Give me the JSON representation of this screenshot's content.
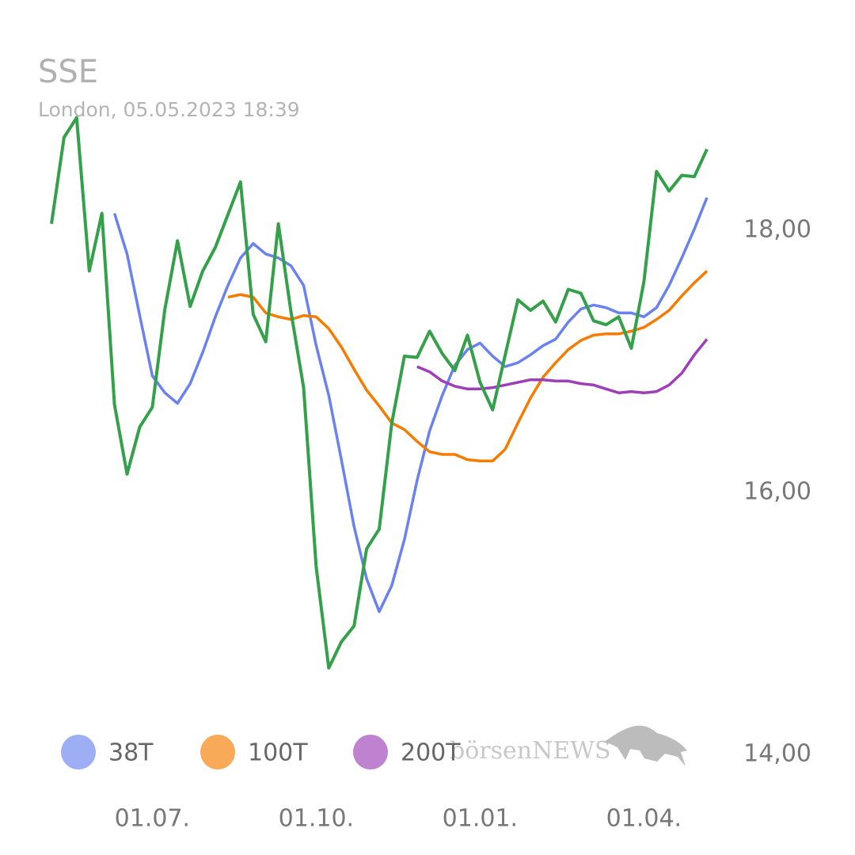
{
  "chart_data": {
    "type": "line",
    "title": "SSE",
    "subtitle": "London, 05.05.2023 18:39",
    "watermark": "börsenNEWS",
    "categories": [
      null,
      null,
      null,
      null,
      null,
      null,
      null,
      null,
      "01.07.",
      null,
      null,
      null,
      null,
      null,
      null,
      null,
      null,
      null,
      null,
      null,
      null,
      "01.10.",
      null,
      null,
      null,
      null,
      null,
      null,
      null,
      null,
      null,
      null,
      null,
      null,
      "01.01.",
      null,
      null,
      null,
      null,
      null,
      null,
      null,
      null,
      null,
      null,
      null,
      null,
      "01.04.",
      null,
      null,
      null,
      null,
      null
    ],
    "series": [
      {
        "color": "#34a04a",
        "values": [
          18.05,
          18.71,
          18.86,
          17.69,
          18.13,
          16.67,
          16.14,
          16.5,
          16.65,
          17.4,
          17.92,
          17.42,
          17.69,
          17.87,
          18.12,
          18.37,
          17.36,
          17.15,
          18.05,
          17.38,
          16.8,
          15.43,
          14.66,
          14.86,
          14.98,
          15.57,
          15.72,
          16.53,
          17.04,
          17.03,
          17.23,
          17.06,
          16.93,
          17.2,
          16.84,
          16.63,
          17.05,
          17.47,
          17.39,
          17.46,
          17.3,
          17.55,
          17.52,
          17.31,
          17.28,
          17.34,
          17.1,
          17.61,
          18.45,
          18.3,
          18.42,
          18.41,
          18.62
        ]
      },
      {
        "name": "38T",
        "color": "#6a82f0",
        "values": [
          null,
          null,
          null,
          null,
          null,
          18.13,
          17.82,
          17.35,
          16.89,
          16.76,
          16.68,
          16.83,
          17.07,
          17.34,
          17.58,
          17.79,
          17.9,
          17.82,
          17.79,
          17.73,
          17.58,
          17.12,
          16.74,
          16.25,
          15.74,
          15.34,
          15.09,
          15.29,
          15.64,
          16.09,
          16.47,
          16.74,
          16.97,
          17.09,
          17.14,
          17.04,
          16.96,
          16.99,
          17.05,
          17.12,
          17.17,
          17.3,
          17.4,
          17.43,
          17.41,
          17.37,
          17.37,
          17.34,
          17.41,
          17.58,
          17.79,
          18.01,
          18.25
        ]
      },
      {
        "name": "100T",
        "color": "#f57c00",
        "values": [
          null,
          null,
          null,
          null,
          null,
          null,
          null,
          null,
          null,
          null,
          null,
          null,
          null,
          null,
          17.49,
          17.51,
          17.49,
          17.37,
          17.34,
          17.32,
          17.35,
          17.34,
          17.25,
          17.11,
          16.94,
          16.78,
          16.66,
          16.53,
          16.48,
          16.39,
          16.31,
          16.29,
          16.29,
          16.25,
          16.24,
          16.24,
          16.33,
          16.53,
          16.72,
          16.88,
          16.99,
          17.09,
          17.16,
          17.2,
          17.21,
          17.21,
          17.23,
          17.26,
          17.32,
          17.39,
          17.5,
          17.6,
          17.69
        ]
      },
      {
        "name": "200T",
        "color": "#9c3fb8",
        "values": [
          null,
          null,
          null,
          null,
          null,
          null,
          null,
          null,
          null,
          null,
          null,
          null,
          null,
          null,
          null,
          null,
          null,
          null,
          null,
          null,
          null,
          null,
          null,
          null,
          null,
          null,
          null,
          null,
          null,
          16.96,
          16.92,
          16.85,
          16.81,
          16.79,
          16.79,
          16.8,
          16.82,
          16.84,
          16.86,
          16.86,
          16.85,
          16.85,
          16.83,
          16.82,
          16.79,
          16.76,
          16.77,
          16.76,
          16.77,
          16.82,
          16.91,
          17.05,
          17.17
        ]
      }
    ],
    "ylim": [
      14,
      19.2
    ],
    "yticks": [
      {
        "value": 14,
        "label": "14,00"
      },
      {
        "value": 16,
        "label": "16,00"
      },
      {
        "value": 18,
        "label": "18,00"
      }
    ],
    "grid": false
  }
}
